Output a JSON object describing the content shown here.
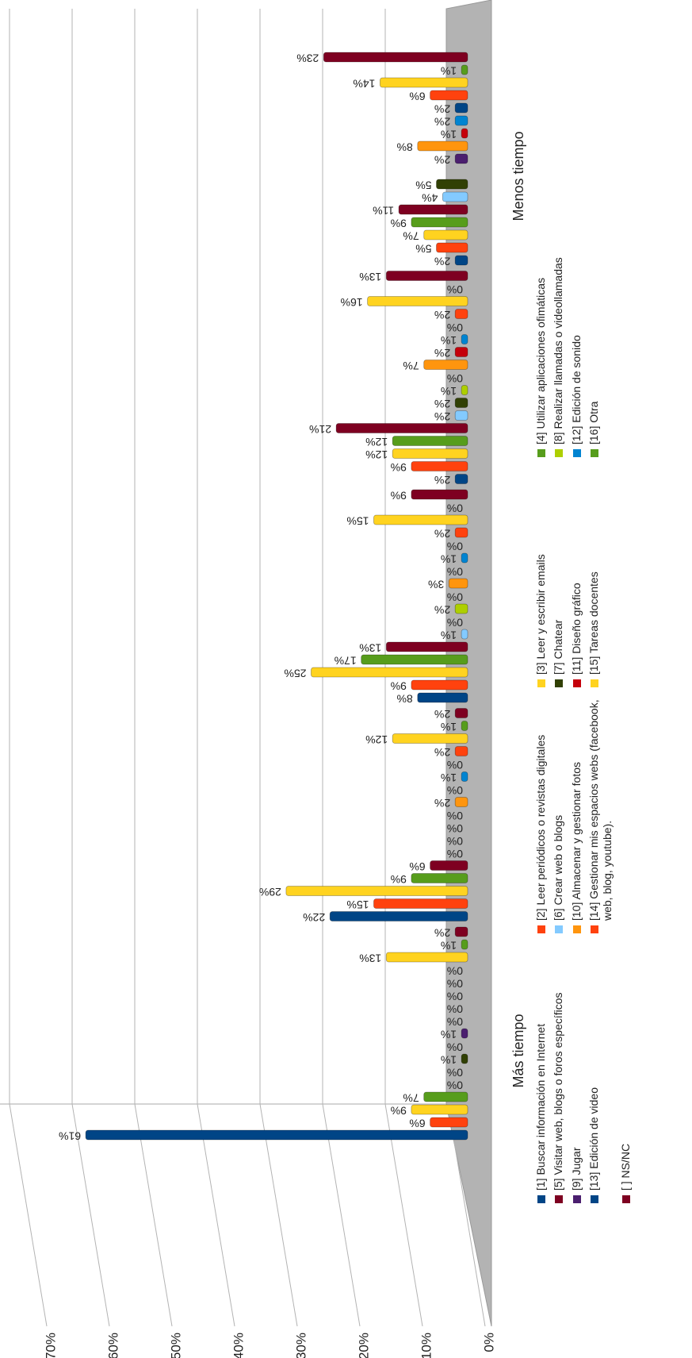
{
  "chart_data": {
    "type": "bar",
    "categories": [
      "Más tiempo",
      null,
      null,
      null,
      "Menos tiempo"
    ],
    "ylim": [
      0,
      70
    ],
    "yticks": [
      {
        "value": 0,
        "label": "0%"
      },
      {
        "value": 10,
        "label": "10%"
      },
      {
        "value": 20,
        "label": "20%"
      },
      {
        "value": 30,
        "label": "30%"
      },
      {
        "value": 40,
        "label": "40%"
      },
      {
        "value": 50,
        "label": "50%"
      },
      {
        "value": 60,
        "label": "60%"
      },
      {
        "value": 70,
        "label": "70%"
      }
    ],
    "grid": true,
    "legend": "bottom",
    "series": [
      {
        "name": "[1] Buscar información en Internet",
        "color": "#004586",
        "values": [
          61,
          22,
          8,
          2,
          2
        ],
        "value_labels": [
          "61%",
          "22%",
          "8%",
          "2%",
          "2%"
        ]
      },
      {
        "name": "[2] Leer periódicos o revistas digitales",
        "color": "#ff420e",
        "values": [
          6,
          15,
          9,
          9,
          5
        ],
        "value_labels": [
          "6%",
          "15%",
          "9%",
          "9%",
          "5%"
        ]
      },
      {
        "name": "[3] Leer y escribir emails",
        "color": "#ffd320",
        "values": [
          9,
          29,
          25,
          12,
          7
        ],
        "value_labels": [
          "9%",
          "29%",
          "25%",
          "12%",
          "7%"
        ]
      },
      {
        "name": "[4] Utilizar aplicaciones ofimáticas",
        "color": "#579d1c",
        "values": [
          7,
          9,
          17,
          12,
          9
        ],
        "value_labels": [
          "7%",
          "9%",
          "17%",
          "12%",
          "9%"
        ]
      },
      {
        "name": "[5] Visitar web, blogs o foros específicos",
        "color": "#7e0021",
        "values": [
          0,
          6,
          13,
          21,
          11
        ],
        "value_labels": [
          "0%",
          "6%",
          "13%",
          "21%",
          "11%"
        ]
      },
      {
        "name": "[6] Crear web o blogs",
        "color": "#83caff",
        "values": [
          0,
          0,
          1,
          2,
          4
        ],
        "value_labels": [
          "0%",
          "0%",
          "1%",
          "2%",
          "4%"
        ]
      },
      {
        "name": "[7] Chatear",
        "color": "#314004",
        "values": [
          1,
          0,
          0,
          2,
          5
        ],
        "value_labels": [
          "1%",
          "0%",
          "0%",
          "2%",
          "5%"
        ]
      },
      {
        "name": "[8] Realizar llamadas o videollamadas",
        "color": "#aecf00",
        "values": [
          0,
          0,
          2,
          1,
          null
        ],
        "value_labels": [
          "0%",
          "0%",
          "2%",
          "1%",
          null
        ]
      },
      {
        "name": "[9] Jugar",
        "color": "#4b1f6f",
        "values": [
          1,
          0,
          0,
          0,
          2
        ],
        "value_labels": [
          "1%",
          "0%",
          "0%",
          "0%",
          "2%"
        ]
      },
      {
        "name": "[10] Almacenar y gestionar fotos",
        "color": "#ff950e",
        "values": [
          0,
          2,
          3,
          7,
          8
        ],
        "value_labels": [
          "0%",
          "2%",
          "3%",
          "7%",
          "8%"
        ]
      },
      {
        "name": "[11] Diseño gráfico",
        "color": "#c5000b",
        "values": [
          0,
          0,
          0,
          2,
          1
        ],
        "value_labels": [
          "0%",
          "0%",
          "0%",
          "2%",
          "1%"
        ]
      },
      {
        "name": "[12] Edición de sonido",
        "color": "#0084d1",
        "values": [
          0,
          1,
          1,
          1,
          2
        ],
        "value_labels": [
          "0%",
          "1%",
          "1%",
          "1%",
          "2%"
        ]
      },
      {
        "name": "[13] Edición de video",
        "color": "#004586",
        "values": [
          0,
          0,
          0,
          0,
          2
        ],
        "value_labels": [
          "0%",
          "0%",
          "0%",
          "0%",
          "2%"
        ]
      },
      {
        "name": "[14] Gestionar mis espacios webs (facebook, web, blog, youtube).",
        "color": "#ff420e",
        "values": [
          0,
          2,
          2,
          2,
          6
        ],
        "value_labels": [
          "0%",
          "2%",
          "2%",
          "2%",
          "6%"
        ]
      },
      {
        "name": "[15] Tareas docentes",
        "color": "#ffd320",
        "values": [
          13,
          12,
          15,
          16,
          14
        ],
        "value_labels": [
          "13%",
          "12%",
          "15%",
          "16%",
          "14%"
        ]
      },
      {
        "name": "[16] Otra",
        "color": "#579d1c",
        "values": [
          1,
          1,
          0,
          0,
          1
        ],
        "value_labels": [
          "1%",
          "1%",
          "0%",
          "0%",
          "1%"
        ]
      },
      {
        "name": "[ ] NS/NC",
        "color": "#7e0021",
        "values": [
          2,
          2,
          9,
          13,
          23
        ],
        "value_labels": [
          "2%",
          "2%",
          "9%",
          "13%",
          "23%"
        ]
      }
    ]
  }
}
